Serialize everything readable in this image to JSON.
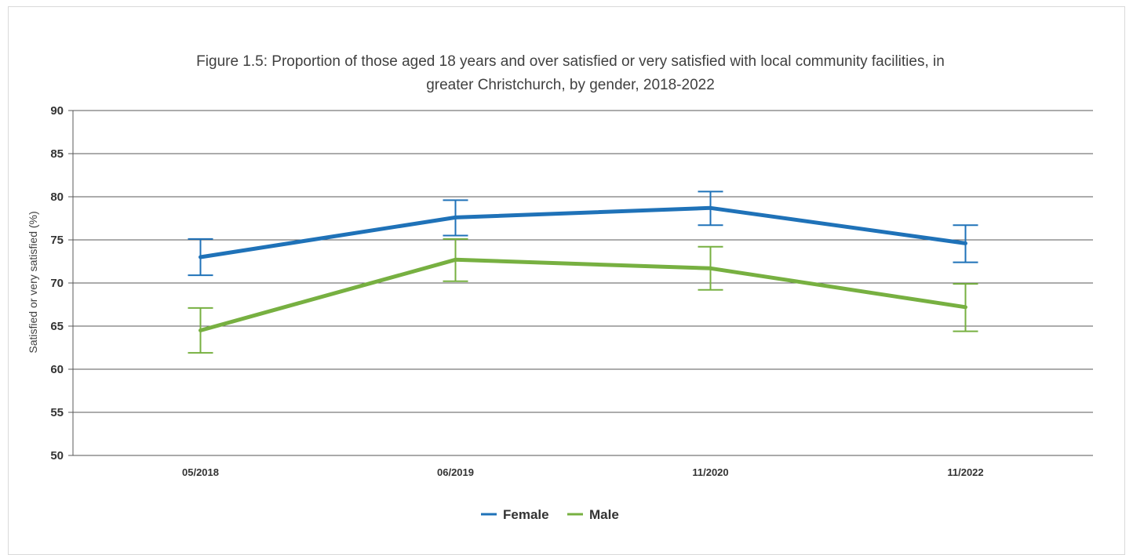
{
  "chart_data": {
    "type": "line",
    "title": "Figure 1.5: Proportion of those aged 18 years and over satisfied or very satisfied with local community facilities, in",
    "title_line2": "greater Christchurch, by gender, 2018-2022",
    "xlabel": "",
    "ylabel": "Satisfied or very satisfied (%)",
    "ylim": [
      50,
      90
    ],
    "yticks": [
      50,
      55,
      60,
      65,
      70,
      75,
      80,
      85,
      90
    ],
    "categories": [
      "05/2018",
      "06/2019",
      "11/2020",
      "11/2022"
    ],
    "grid": true,
    "legend_position": "bottom",
    "series": [
      {
        "name": "Female",
        "color": "#1f72b8",
        "values": [
          73.0,
          77.6,
          78.7,
          74.6
        ],
        "lower": [
          70.9,
          75.5,
          76.7,
          72.4
        ],
        "upper": [
          75.1,
          79.6,
          80.6,
          76.7
        ]
      },
      {
        "name": "Male",
        "color": "#77b041",
        "values": [
          64.5,
          72.7,
          71.7,
          67.2
        ],
        "lower": [
          61.9,
          70.2,
          69.2,
          64.4
        ],
        "upper": [
          67.1,
          75.1,
          74.2,
          69.9
        ]
      }
    ]
  }
}
